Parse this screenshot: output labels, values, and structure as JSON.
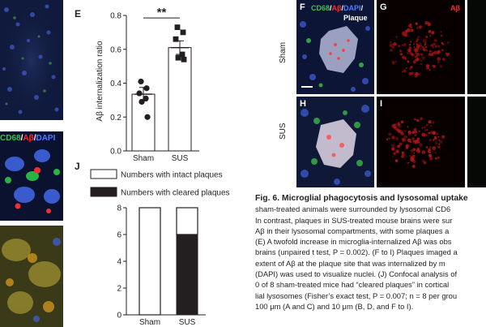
{
  "panels": {
    "E": "E",
    "F": "F",
    "G": "G",
    "H": "H",
    "I": "I",
    "J": "J"
  },
  "left_panel": {
    "channel_label": {
      "cd68": "CD68",
      "sep1": "/",
      "ab": "Aβ",
      "sep2": "/",
      "dapi": "DAPI"
    }
  },
  "panel_f": {
    "channel_label": {
      "cd68": "CD68",
      "sep1": "/",
      "ab": "Aβ",
      "sep2": "/",
      "dapi": "DAPI",
      "sep3": "/",
      "plaque": "Plaque"
    }
  },
  "panel_g": {
    "channel_label": "Aβ"
  },
  "row_labels": {
    "sham": "Sham",
    "sus": "SUS"
  },
  "colors": {
    "cd68": "#3ec24a",
    "ab": "#ff2a2a",
    "dapi": "#4a7dff",
    "bar_fill": "#231f20"
  },
  "chart_data": [
    {
      "panel": "E",
      "type": "bar",
      "categories": [
        "Sham",
        "SUS"
      ],
      "values": [
        0.335,
        0.61
      ],
      "errors": [
        0.04,
        0.04
      ],
      "points": [
        [
          0.41,
          0.37,
          0.34,
          0.31,
          0.29,
          0.2
        ],
        [
          0.73,
          0.7,
          0.66,
          0.57,
          0.55,
          0.54
        ]
      ],
      "ylabel": "Aβ internalization ratio",
      "ylim": [
        0,
        0.8
      ],
      "yticks": [
        "0.0",
        "0.2",
        "0.4",
        "0.6",
        "0.8"
      ],
      "significance": "**"
    },
    {
      "panel": "J",
      "type": "bar",
      "stacked": true,
      "categories": [
        "Sham",
        "SUS"
      ],
      "series": [
        {
          "name": "Numbers with intact plaques",
          "values": [
            8,
            2
          ]
        },
        {
          "name": "Numbers with cleared plaques",
          "values": [
            0,
            6
          ]
        }
      ],
      "ylim": [
        0,
        8
      ],
      "yticks": [
        "0",
        "2",
        "4",
        "6",
        "8"
      ]
    }
  ],
  "caption": {
    "title": "Fig. 6.  Microglial phagocytosis and lysosomal uptake",
    "lines": [
      "sham-treated animals were surrounded by lysosomal CD6",
      "In contrast, plaques in SUS-treated mouse brains were sur",
      "Aβ in their lysosomal compartments, with some plaques a",
      "(E) A twofold increase in microglia-internalized Aβ was obs",
      "brains (unpaired t test, P = 0.002). (F to I) Plaques imaged a",
      "extent of Aβ at the plaque site that was internalized by m",
      "(DAPI) was used to visualize nuclei. (J) Confocal analysis of",
      "0 of 8 sham-treated mice had “cleared plaques” in cortical",
      "lial lysosomes (Fisher’s exact test, P = 0.007; n = 8 per grou",
      "100 μm (A and C) and 10 μm (B, D, and F to I)."
    ]
  }
}
